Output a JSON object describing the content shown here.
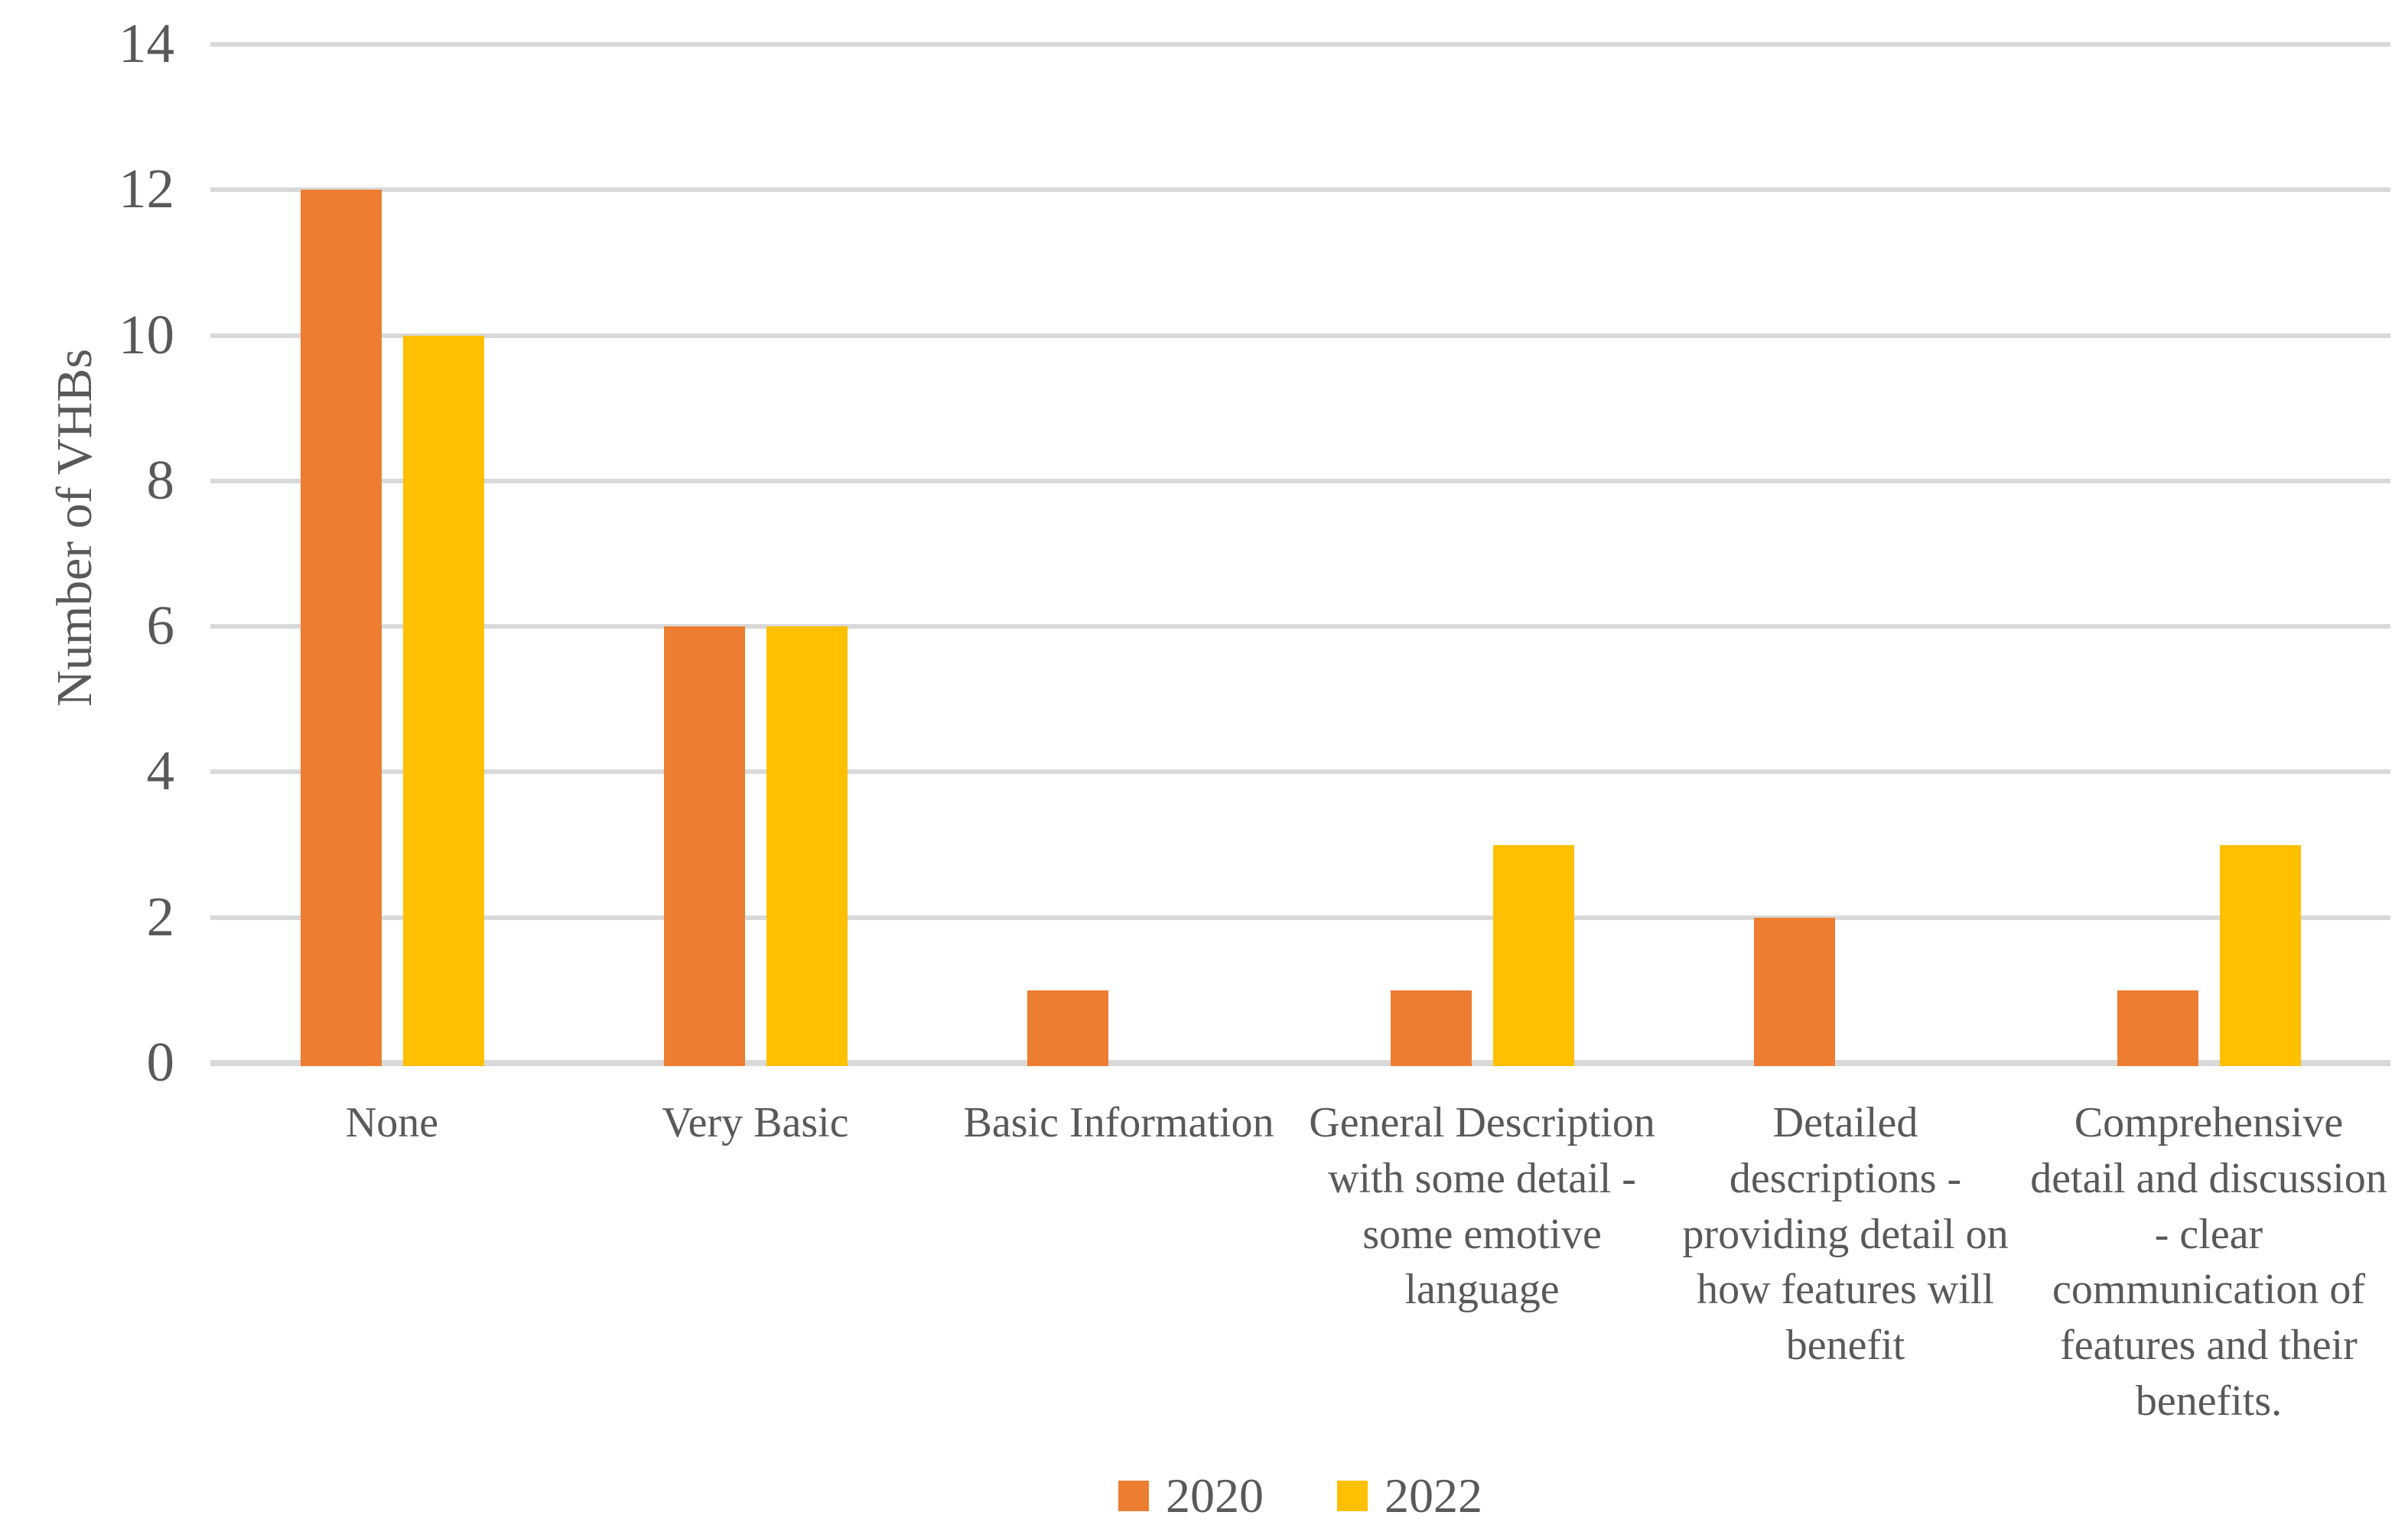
{
  "chart_data": {
    "type": "bar",
    "title": "",
    "xlabel": "",
    "ylabel": "Number of VHBs",
    "ylim": [
      0,
      14
    ],
    "ytick_step": 2,
    "ytick_labels": [
      "0",
      "2",
      "4",
      "6",
      "8",
      "10",
      "12",
      "14"
    ],
    "grid": true,
    "legend_position": "bottom",
    "categories": [
      "None",
      "Very Basic",
      "Basic Information",
      "General Description with some detail - some emotive language",
      "Detailed descriptions - providing detail on how features will benefit",
      "Comprehensive detail and discussion - clear communication of features and their benefits."
    ],
    "series": [
      {
        "name": "2020",
        "color": "#ED7D31",
        "values": [
          12,
          6,
          1,
          1,
          2,
          1
        ]
      },
      {
        "name": "2022",
        "color": "#FFC000",
        "values": [
          10,
          6,
          0,
          3,
          0,
          3
        ]
      }
    ]
  },
  "display": {
    "category_lines": [
      [
        "None"
      ],
      [
        "Very Basic"
      ],
      [
        "Basic Information"
      ],
      [
        "General Description",
        "with some detail -",
        "some emotive",
        "language"
      ],
      [
        "Detailed",
        "descriptions -",
        "providing detail on",
        "how features will",
        "benefit"
      ],
      [
        "Comprehensive",
        "detail and discussion",
        "- clear",
        "communication of",
        "features and their",
        "benefits."
      ]
    ],
    "colors": {
      "gridline": "#D9D9D9",
      "axis_line": "#D9D9D9",
      "text": "#595959",
      "background": "#FFFFFF"
    }
  }
}
